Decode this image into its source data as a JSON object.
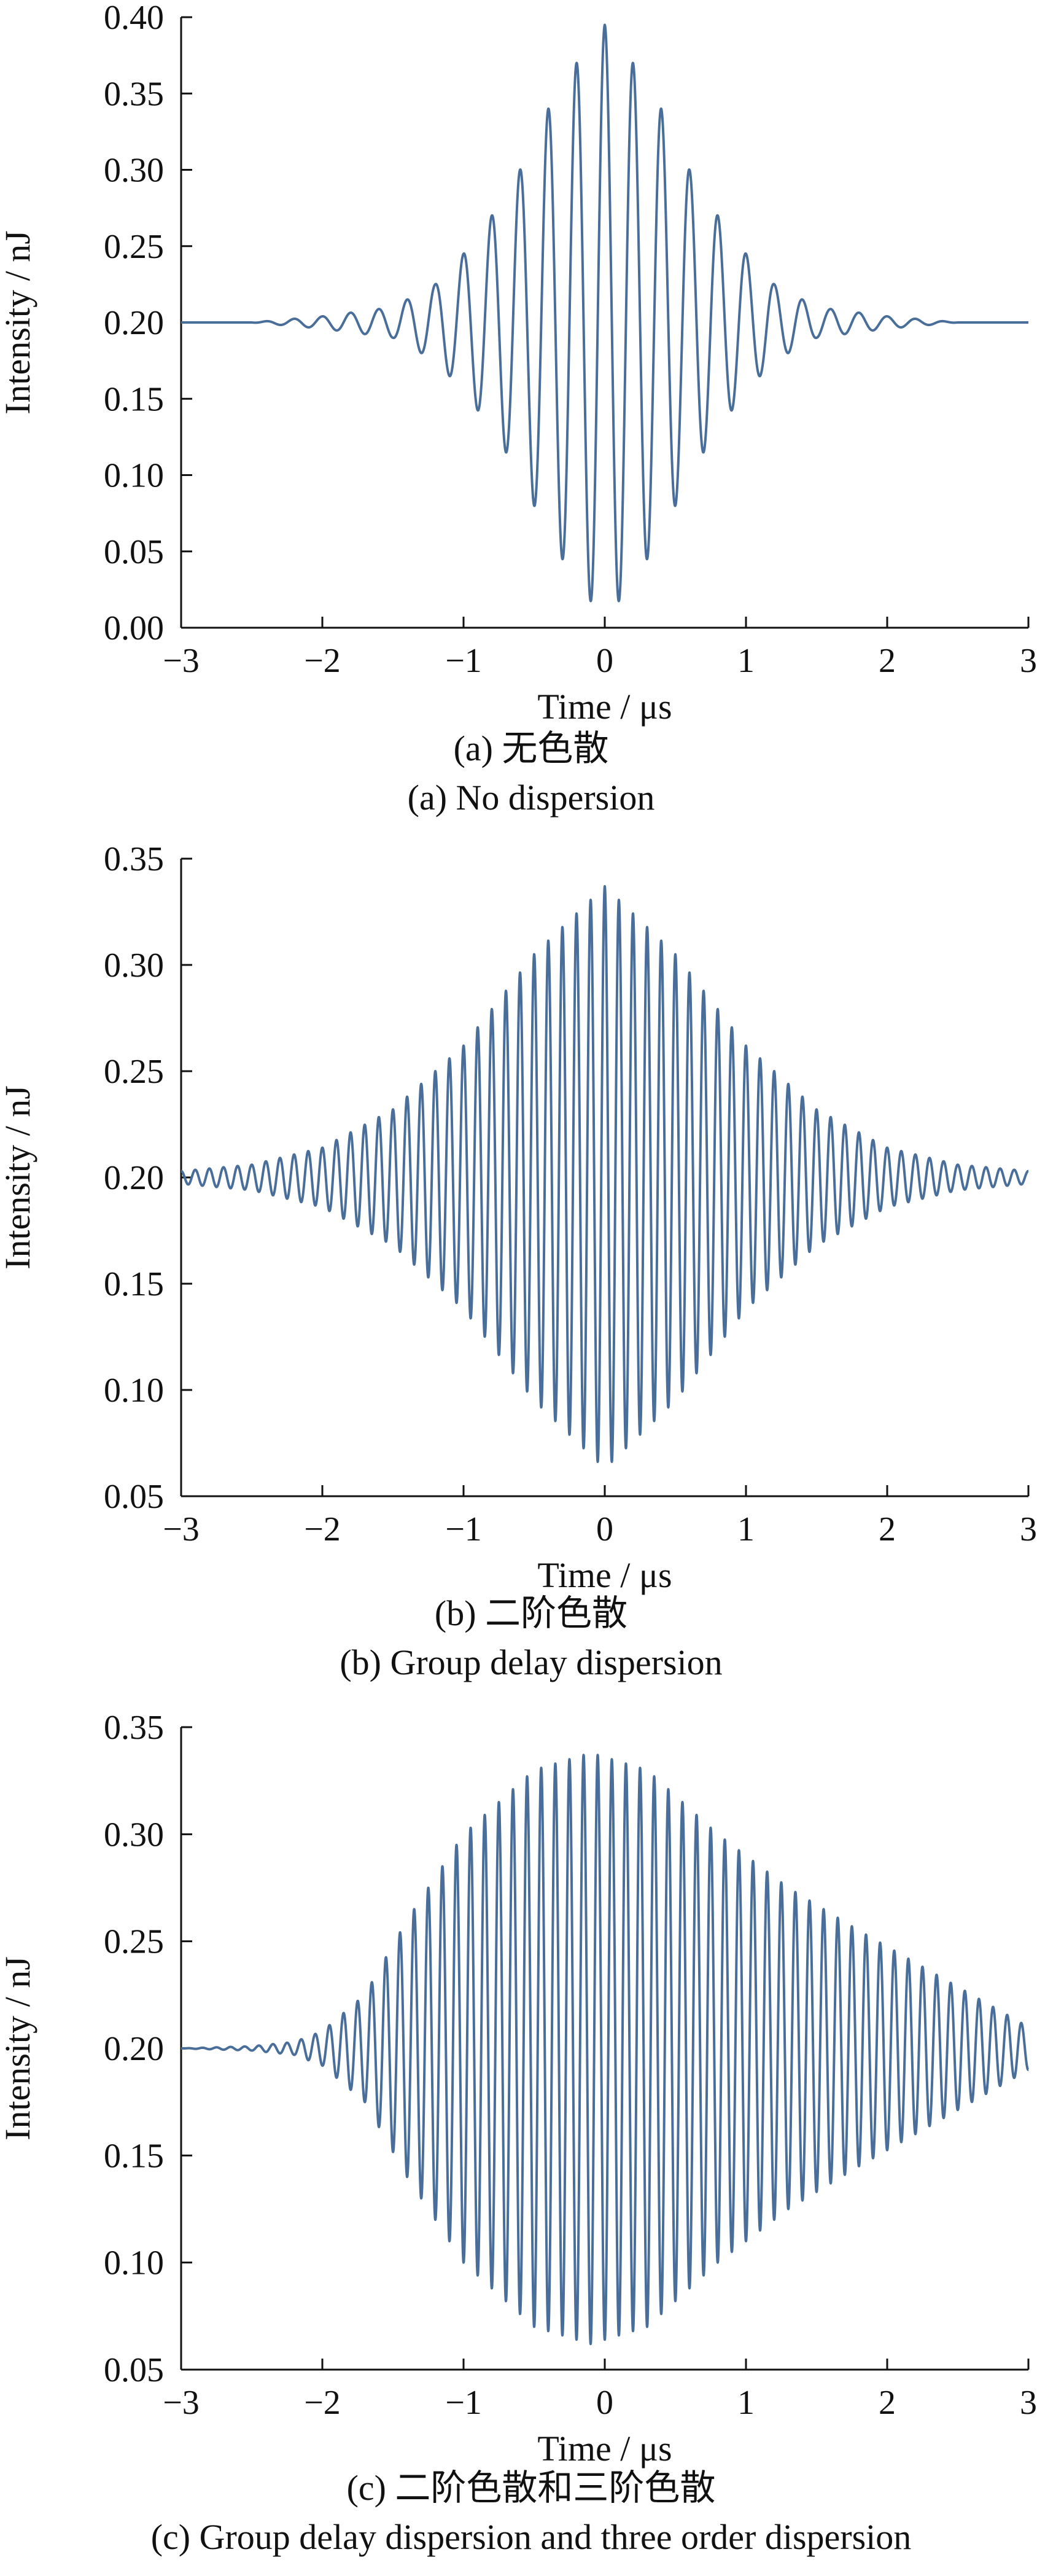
{
  "chart_data": [
    {
      "type": "line",
      "xlabel": "Time / μs",
      "ylabel": "Intensity / nJ",
      "xlim": [
        -3,
        3
      ],
      "ylim": [
        0.0,
        0.4
      ],
      "xticks": [
        "−3",
        "−2",
        "−1",
        "0",
        "1",
        "2",
        "3"
      ],
      "yticks": [
        "0.00",
        "0.05",
        "0.10",
        "0.15",
        "0.20",
        "0.25",
        "0.30",
        "0.35",
        "0.40"
      ],
      "caption_cn": "(a) 无色散",
      "caption_en": "(a) No dispersion",
      "line_color": "#4a6e9a",
      "series": [
        {
          "points": [
            [
              -3.0,
              0.2
            ],
            [
              -2.5,
              0.2
            ],
            [
              -2.0,
              0.204
            ],
            [
              -1.5,
              0.21
            ],
            [
              -1.2,
              0.225
            ],
            [
              -1.0,
              0.245
            ],
            [
              -0.8,
              0.27
            ],
            [
              -0.6,
              0.3
            ],
            [
              -0.4,
              0.34
            ],
            [
              -0.2,
              0.37
            ],
            [
              0.0,
              0.395
            ],
            [
              0.2,
              0.37
            ],
            [
              0.4,
              0.34
            ],
            [
              0.6,
              0.3
            ],
            [
              0.8,
              0.27
            ],
            [
              1.0,
              0.245
            ],
            [
              1.2,
              0.225
            ],
            [
              1.5,
              0.21
            ],
            [
              2.0,
              0.204
            ],
            [
              2.5,
              0.2
            ],
            [
              3.0,
              0.2
            ]
          ],
          "baseline": 0.2,
          "oscillation_period": 0.2,
          "start_phase": "max"
        }
      ]
    },
    {
      "type": "line",
      "xlabel": "Time / μs",
      "ylabel": "Intensity / nJ",
      "xlim": [
        -3,
        3
      ],
      "ylim": [
        0.05,
        0.35
      ],
      "xticks": [
        "−3",
        "−2",
        "−1",
        "0",
        "1",
        "2",
        "3"
      ],
      "yticks": [
        "0.05",
        "0.10",
        "0.15",
        "0.20",
        "0.25",
        "0.30",
        "0.35"
      ],
      "caption_cn": "(b) 二阶色散",
      "caption_en": "(b) Group delay dispersion",
      "line_color": "#4a6e9a",
      "series": [
        {
          "points": [
            [
              -3.0,
              0.203
            ],
            [
              -2.5,
              0.206
            ],
            [
              -2.0,
              0.214
            ],
            [
              -1.5,
              0.232
            ],
            [
              -1.0,
              0.262
            ],
            [
              -0.5,
              0.305
            ],
            [
              0.0,
              0.337
            ],
            [
              0.5,
              0.305
            ],
            [
              1.0,
              0.262
            ],
            [
              1.5,
              0.232
            ],
            [
              2.0,
              0.214
            ],
            [
              2.5,
              0.206
            ],
            [
              3.0,
              0.203
            ]
          ],
          "baseline": 0.2,
          "oscillation_period": 0.1,
          "start_phase": "max"
        }
      ]
    },
    {
      "type": "line",
      "xlabel": "Time / μs",
      "ylabel": "Intensity / nJ",
      "xlim": [
        -3,
        3
      ],
      "ylim": [
        0.05,
        0.35
      ],
      "xticks": [
        "−3",
        "−2",
        "−1",
        "0",
        "1",
        "2",
        "3"
      ],
      "yticks": [
        "0.05",
        "0.10",
        "0.15",
        "0.20",
        "0.25",
        "0.30",
        "0.35"
      ],
      "caption_cn": "(c) 二阶色散和三阶色散",
      "caption_en": "(c) Group delay dispersion and three order dispersion",
      "line_color": "#4a6e9a",
      "series": [
        {
          "points": [
            [
              -3.0,
              0.2
            ],
            [
              -2.5,
              0.201
            ],
            [
              -2.2,
              0.203
            ],
            [
              -2.0,
              0.208
            ],
            [
              -1.7,
              0.225
            ],
            [
              -1.4,
              0.26
            ],
            [
              -1.0,
              0.3
            ],
            [
              -0.5,
              0.33
            ],
            [
              -0.1,
              0.338
            ],
            [
              0.3,
              0.33
            ],
            [
              0.8,
              0.3
            ],
            [
              1.3,
              0.275
            ],
            [
              1.8,
              0.255
            ],
            [
              2.2,
              0.24
            ],
            [
              2.6,
              0.225
            ],
            [
              3.0,
              0.21
            ]
          ],
          "baseline": 0.2,
          "oscillation_period": 0.1,
          "start_phase": "min"
        }
      ]
    }
  ]
}
